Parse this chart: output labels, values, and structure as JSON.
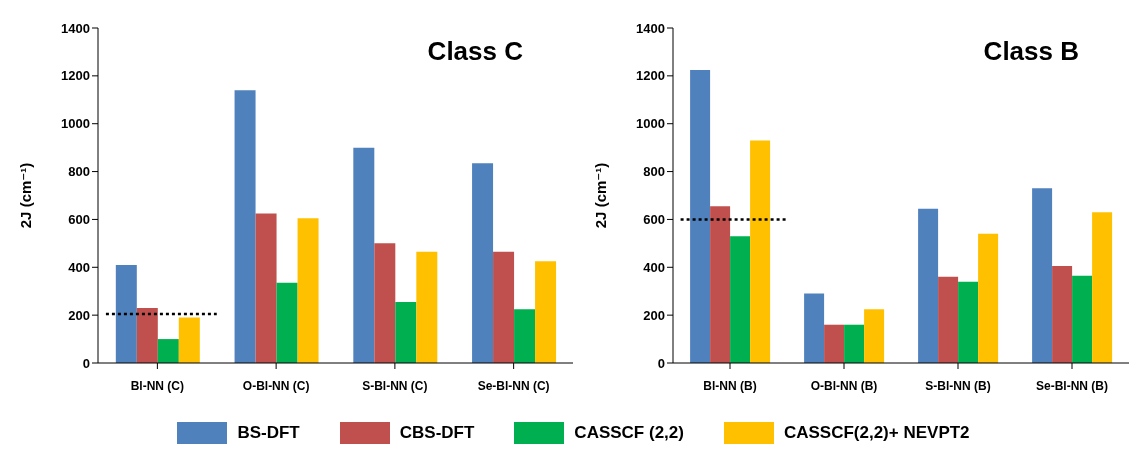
{
  "chart_data": [
    {
      "type": "bar",
      "title": "Class C",
      "ylabel": "2J (cm⁻¹)",
      "categories": [
        "Bl-NN (C)",
        "O-Bl-NN (C)",
        "S-Bl-NN (C)",
        "Se-Bl-NN (C)"
      ],
      "series": [
        {
          "name": "BS-DFT",
          "color": "#4f81bd",
          "values": [
            410,
            1140,
            900,
            835
          ]
        },
        {
          "name": "CBS-DFT",
          "color": "#c0504d",
          "values": [
            230,
            625,
            500,
            465
          ]
        },
        {
          "name": "CASSCF (2,2)",
          "color": "#00b050",
          "values": [
            100,
            335,
            255,
            225
          ]
        },
        {
          "name": "CASSCF(2,2)+ NEVPT2",
          "color": "#ffc000",
          "values": [
            190,
            605,
            465,
            425
          ]
        }
      ],
      "ylim": [
        0,
        1400
      ],
      "yticks": [
        0,
        200,
        400,
        600,
        800,
        1000,
        1200,
        1400
      ],
      "grid": false,
      "legend": "bottom",
      "ref_lines": [
        {
          "axis": "y",
          "value": 205,
          "color": "#000000",
          "line_style": "dotted"
        }
      ]
    },
    {
      "type": "bar",
      "title": "Class B",
      "ylabel": "2J (cm⁻¹)",
      "categories": [
        "Bl-NN (B)",
        "O-Bl-NN (B)",
        "S-Bl-NN (B)",
        "Se-Bl-NN (B)"
      ],
      "series": [
        {
          "color": "#4f81bd",
          "values": [
            1225,
            290,
            645,
            730
          ]
        },
        {
          "color": "#c0504d",
          "values": [
            655,
            160,
            360,
            405
          ]
        },
        {
          "color": "#00b050",
          "values": [
            530,
            160,
            340,
            365
          ]
        },
        {
          "color": "#ffc000",
          "values": [
            930,
            225,
            540,
            630
          ]
        }
      ],
      "ylim": [
        0,
        1400
      ],
      "yticks": [
        0,
        200,
        400,
        600,
        800,
        1000,
        1200,
        1400
      ],
      "grid": false,
      "ref_lines": [
        {
          "axis": "y",
          "value": 600,
          "color": "#000000",
          "line_style": "dotted"
        }
      ]
    }
  ]
}
